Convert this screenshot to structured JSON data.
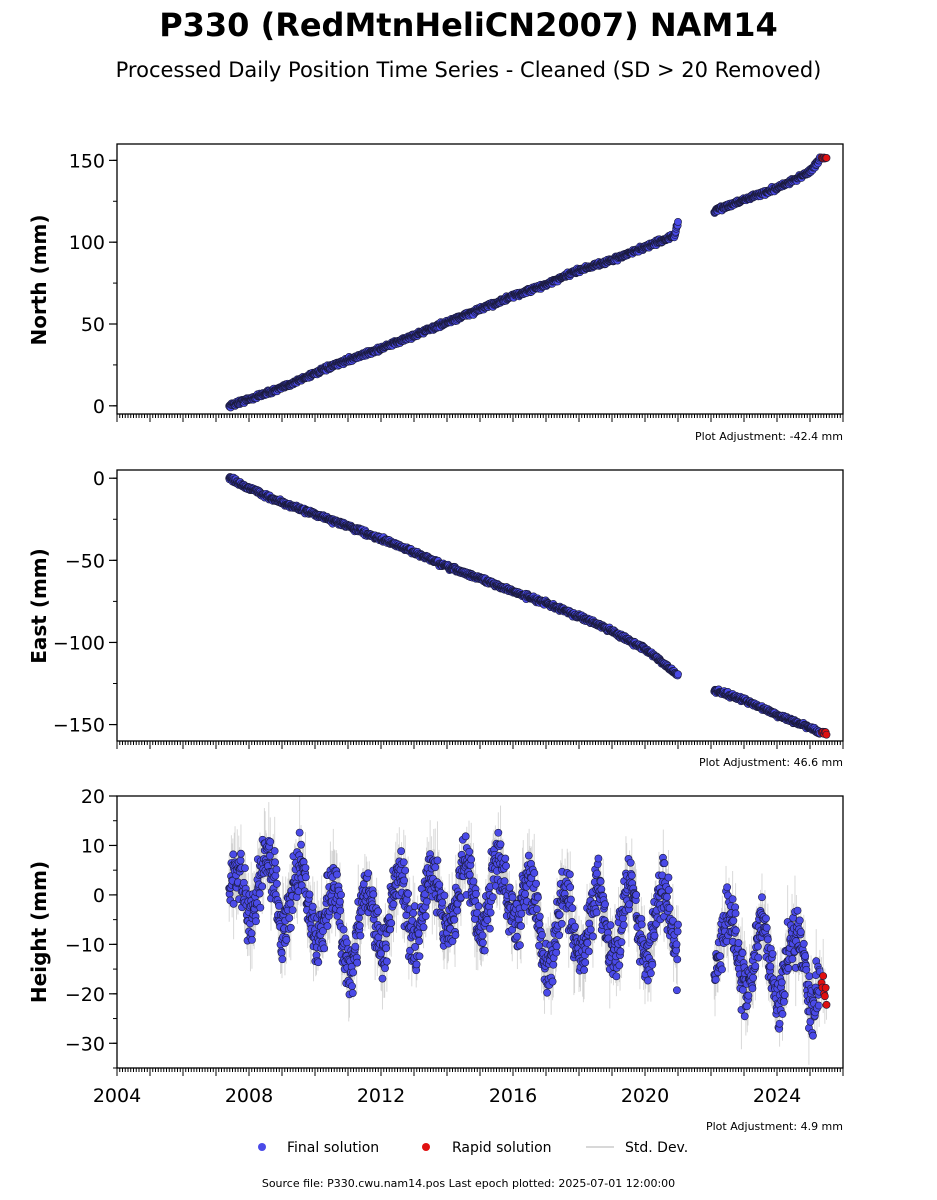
{
  "title": "P330 (RedMtnHeliCN2007) NAM14",
  "subtitle": "Processed Daily Position Time Series - Cleaned (SD > 20 Removed)",
  "footer": "Source file: P330.cwu.nam14.pos  Last epoch plotted: 2025-07-01 12:00:00",
  "colors": {
    "final": "#4a4ae8",
    "rapid": "#e01010",
    "std": "#aaaaaa",
    "edge": "#1a1a3a"
  },
  "legend": [
    {
      "label": "Final solution",
      "kind": "final"
    },
    {
      "label": "Rapid solution",
      "kind": "rapid"
    },
    {
      "label": "Std. Dev.",
      "kind": "std"
    }
  ],
  "chart_data": [
    {
      "type": "scatter",
      "ylabel": "North (mm)",
      "adjustment": "Plot Adjustment: -42.4 mm",
      "xlim": [
        2004,
        2026
      ],
      "ylim": [
        -5,
        160
      ],
      "yticks": [
        0,
        50,
        100,
        150
      ],
      "ytick_labels": [
        "0",
        "50",
        "100",
        "150"
      ],
      "series": [
        {
          "kind": "final",
          "segments": [
            {
              "x": [
                2007.4,
                2008.0,
                2009.0,
                2010.0,
                2011.0,
                2012.0,
                2013.0,
                2014.0,
                2015.0,
                2016.0,
                2017.0,
                2018.0,
                2019.0,
                2020.0,
                2020.9,
                2021.0
              ],
              "y": [
                0,
                4,
                11,
                20,
                28,
                35,
                43,
                51,
                59,
                67,
                74,
                83,
                89,
                97,
                104,
                112
              ]
            },
            {
              "x": [
                2022.1,
                2023.0,
                2024.0,
                2025.0,
                2025.3
              ],
              "y": [
                119,
                126,
                133,
                143,
                151
              ]
            }
          ]
        },
        {
          "kind": "rapid",
          "segments": [
            {
              "x": [
                2025.35,
                2025.5
              ],
              "y": [
                151,
                152
              ]
            }
          ]
        }
      ]
    },
    {
      "type": "scatter",
      "ylabel": "East (mm)",
      "adjustment": "Plot Adjustment: 46.6 mm",
      "xlim": [
        2004,
        2026
      ],
      "ylim": [
        -160,
        5
      ],
      "yticks": [
        0,
        -50,
        -100,
        -150
      ],
      "ytick_labels": [
        "0",
        "−50",
        "−100",
        "−150"
      ],
      "series": [
        {
          "kind": "final",
          "segments": [
            {
              "x": [
                2007.4,
                2008.0,
                2009.0,
                2010.0,
                2011.0,
                2012.0,
                2013.0,
                2014.0,
                2015.0,
                2016.0,
                2017.0,
                2018.0,
                2019.0,
                2020.0,
                2021.0
              ],
              "y": [
                0,
                -6,
                -15,
                -22,
                -29,
                -37,
                -45,
                -54,
                -61,
                -69,
                -76,
                -84,
                -93,
                -104,
                -120
              ]
            },
            {
              "x": [
                2022.1,
                2023.0,
                2024.0,
                2025.0,
                2025.3
              ],
              "y": [
                -129,
                -135,
                -144,
                -152,
                -155
              ]
            }
          ]
        },
        {
          "kind": "rapid",
          "segments": [
            {
              "x": [
                2025.35,
                2025.5
              ],
              "y": [
                -155,
                -155
              ]
            }
          ]
        }
      ]
    },
    {
      "type": "scatter",
      "ylabel": "Height (mm)",
      "adjustment": "Plot Adjustment: 4.9 mm",
      "xlim": [
        2004,
        2026
      ],
      "ylim": [
        -35,
        20
      ],
      "xticks": [
        2004,
        2008,
        2012,
        2016,
        2020,
        2024
      ],
      "xtick_labels": [
        "2004",
        "2008",
        "2012",
        "2016",
        "2020",
        "2024"
      ],
      "yticks": [
        20,
        10,
        0,
        -10,
        -20,
        -30
      ],
      "ytick_labels": [
        "20",
        "10",
        "0",
        "−10",
        "−20",
        "−30"
      ],
      "series": [
        {
          "kind": "final",
          "segments": [
            {
              "x": [
                2007.4,
                2008.0,
                2009.0,
                2010.0,
                2011.0,
                2012.0,
                2013.0,
                2014.0,
                2015.0,
                2016.0,
                2017.0,
                2018.0,
                2019.0,
                2020.0,
                2021.0
              ],
              "y": [
                -3,
                2,
                0,
                -2,
                -8,
                -4,
                -3,
                0,
                -1,
                2,
                -9,
                -6,
                -5,
                -6,
                -5
              ],
              "seasonal_amplitude": 7,
              "scatter": 4
            },
            {
              "x": [
                2022.1,
                2023.0,
                2024.0,
                2025.0,
                2025.3
              ],
              "y": [
                -10,
                -12,
                -14,
                -15,
                -18
              ],
              "seasonal_amplitude": 7,
              "scatter": 4
            }
          ]
        },
        {
          "kind": "rapid",
          "segments": [
            {
              "x": [
                2025.35,
                2025.5
              ],
              "y": [
                -18,
                -20
              ],
              "scatter": 3
            }
          ]
        }
      ]
    }
  ]
}
